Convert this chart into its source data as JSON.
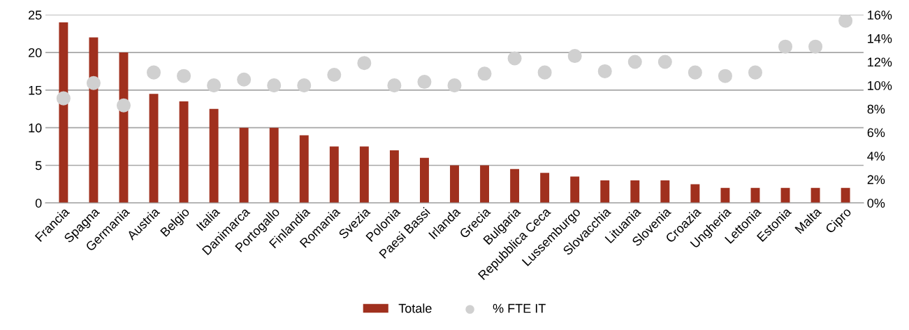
{
  "chart_data": {
    "type": "bar",
    "categories": [
      "Francia",
      "Spagna",
      "Germania",
      "Austria",
      "Belgio",
      "Italia",
      "Danimarca",
      "Portogallo",
      "Finlandia",
      "Romania",
      "Svezia",
      "Polonia",
      "Paesi Bassi",
      "Irlanda",
      "Grecia",
      "Bulgaria",
      "Repubblica Ceca",
      "Lussemburgo",
      "Slovacchia",
      "Lituania",
      "Slovenia",
      "Croazia",
      "Ungheria",
      "Lettonia",
      "Estonia",
      "Malta",
      "Cipro"
    ],
    "series": [
      {
        "name": "Totale",
        "color": "#a0301e",
        "values": [
          24,
          22,
          20,
          14.5,
          13.5,
          12.5,
          10,
          10,
          9,
          7.5,
          7.5,
          7,
          6,
          5,
          5,
          4.5,
          4,
          3.5,
          3,
          3,
          3,
          2.5,
          2,
          2,
          2,
          2,
          2
        ]
      },
      {
        "name": "% FTE IT",
        "type": "scatter",
        "axis": "y2",
        "color": "#d0d0d0",
        "values": [
          8.9,
          10.2,
          8.3,
          11.1,
          10.8,
          10.0,
          10.5,
          10.0,
          10.0,
          10.9,
          11.9,
          10.0,
          10.3,
          10.0,
          11.0,
          12.3,
          11.1,
          12.5,
          11.2,
          12.0,
          12.0,
          11.1,
          10.8,
          11.1,
          13.3,
          13.3,
          15.5
        ]
      }
    ],
    "ylim": [
      0,
      25
    ],
    "yticks": [
      0,
      5,
      10,
      15,
      20,
      25
    ],
    "y2lim": [
      0,
      16
    ],
    "y2ticks": [
      {
        "value": 0,
        "label": "0%"
      },
      {
        "value": 2,
        "label": "2%"
      },
      {
        "value": 4,
        "label": "4%"
      },
      {
        "value": 6,
        "label": "6%"
      },
      {
        "value": 8,
        "label": "8%"
      },
      {
        "value": 10,
        "label": "10%"
      },
      {
        "value": 12,
        "label": "12%"
      },
      {
        "value": 14,
        "label": "14%"
      },
      {
        "value": 16,
        "label": "16%"
      }
    ],
    "grid": "y",
    "legend": "bottom",
    "marker": "circle"
  }
}
